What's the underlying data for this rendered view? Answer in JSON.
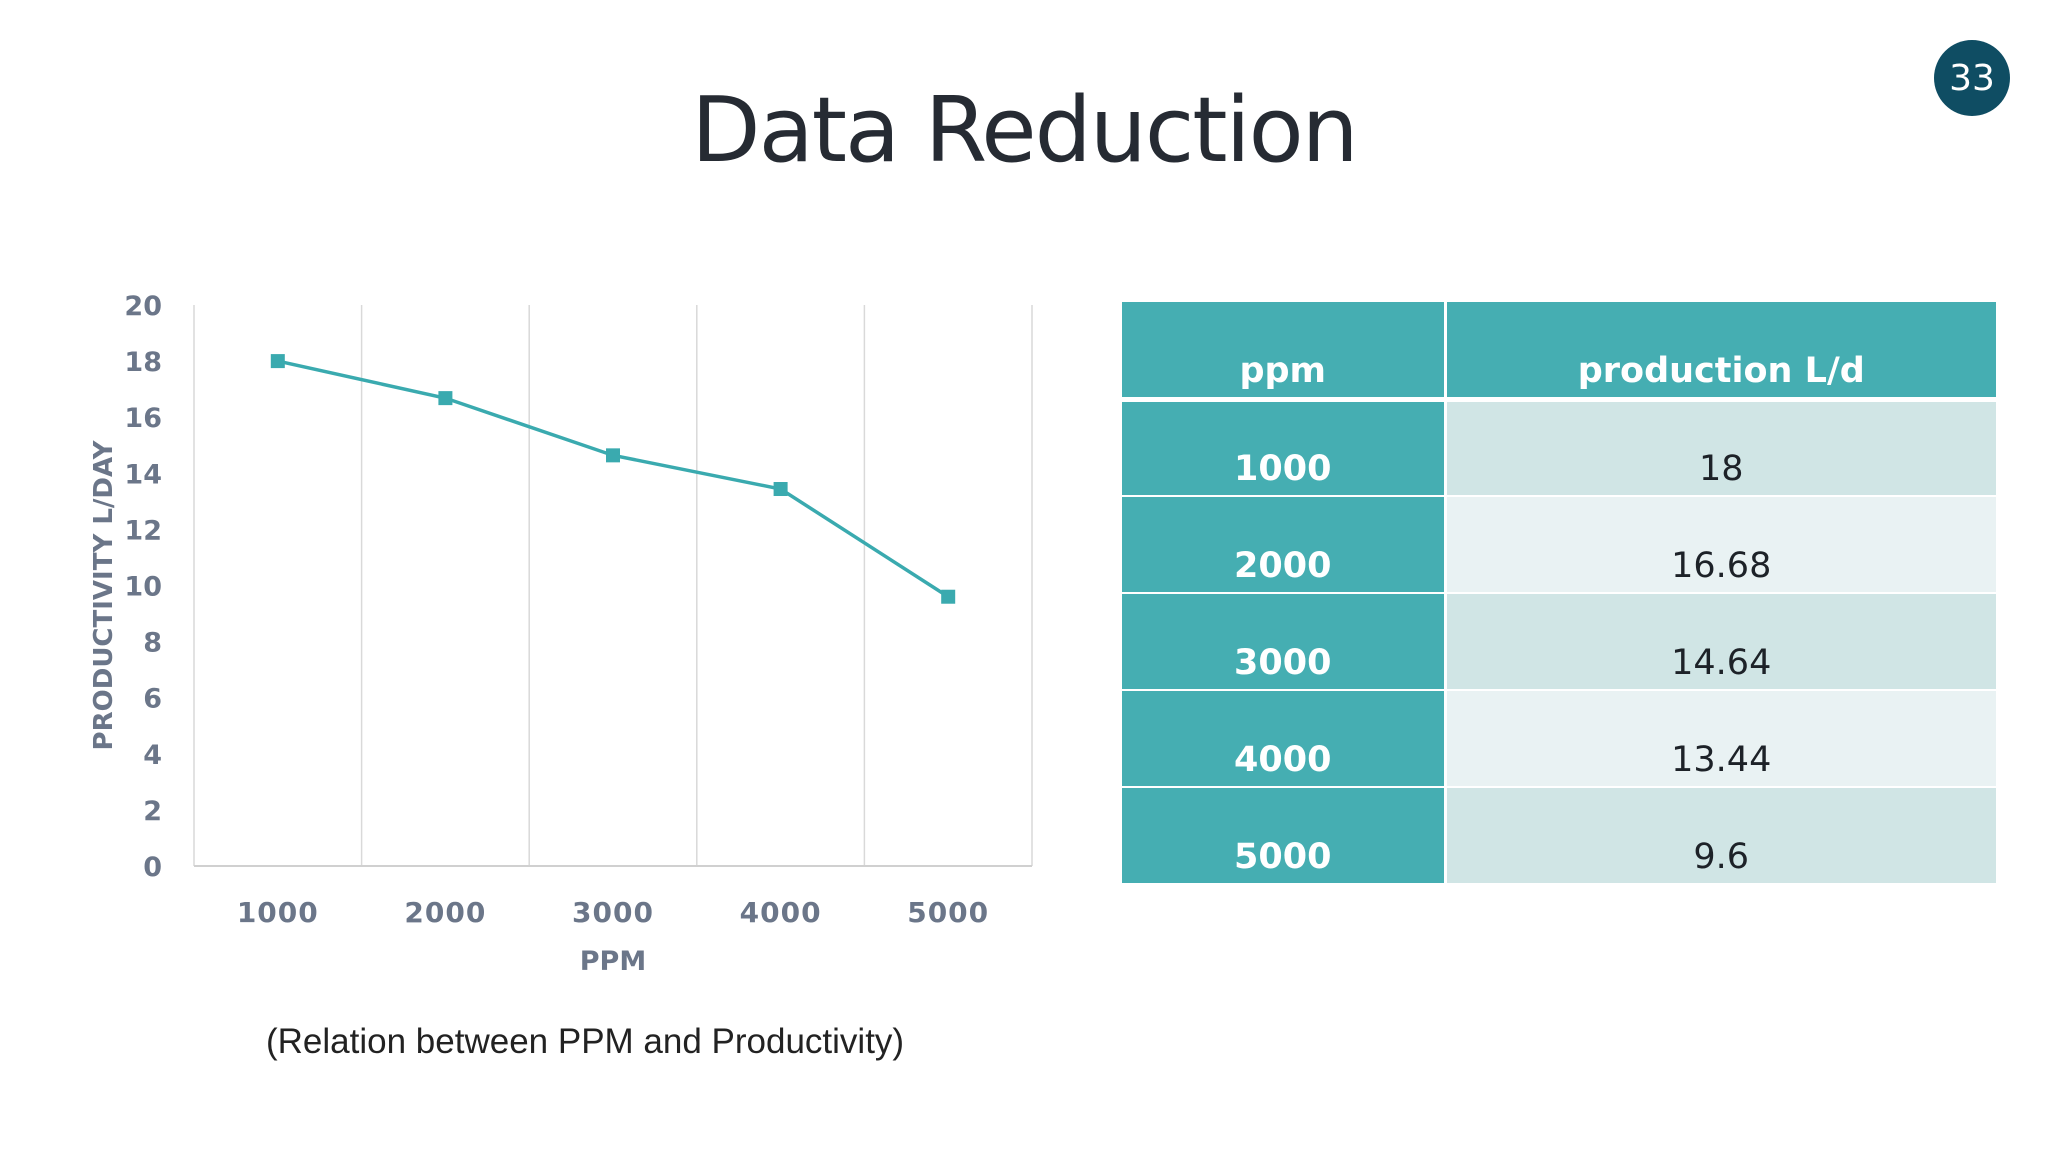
{
  "slide": {
    "title": "Data Reduction",
    "page_number": "33",
    "caption": "(Relation between PPM and Productivity)"
  },
  "table": {
    "headers": [
      "ppm",
      "production L/d"
    ],
    "rows": [
      [
        "1000",
        "18"
      ],
      [
        "2000",
        "16.68"
      ],
      [
        "3000",
        "14.64"
      ],
      [
        "4000",
        "13.44"
      ],
      [
        "5000",
        "9.6"
      ]
    ]
  },
  "colors": {
    "accent": "#45aeb2",
    "line": "#3aaaaf",
    "axis_text": "#6b7689",
    "badge": "#0f4d63"
  },
  "chart_data": {
    "type": "line",
    "title": "",
    "xlabel": "PPM",
    "ylabel": "PRODUCTIVITY L/DAY",
    "categories": [
      "1000",
      "2000",
      "3000",
      "4000",
      "5000"
    ],
    "series": [
      {
        "values": [
          18,
          16.68,
          14.64,
          13.44,
          9.6
        ]
      }
    ],
    "ylim": [
      0,
      20
    ],
    "yticks": [
      "0",
      "2",
      "4",
      "6",
      "8",
      "10",
      "12",
      "14",
      "16",
      "18",
      "20"
    ],
    "grid": "vertical",
    "marker": "square"
  }
}
